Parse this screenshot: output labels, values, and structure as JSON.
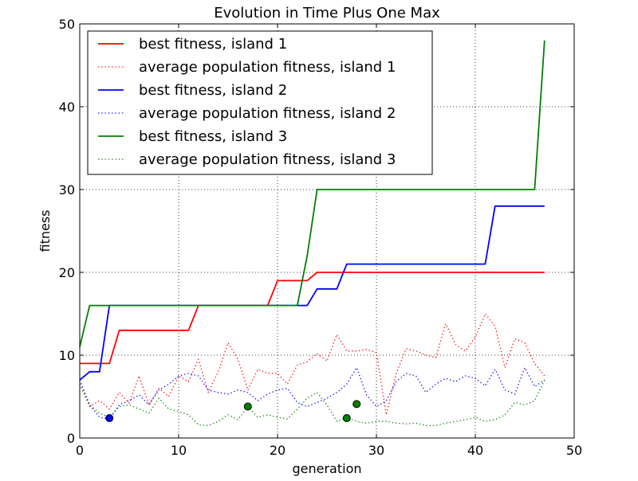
{
  "chart_data": {
    "type": "line",
    "title": "Evolution in Time Plus One Max",
    "xlabel": "generation",
    "ylabel": "fitness",
    "xlim": [
      0,
      50
    ],
    "ylim": [
      0,
      50
    ],
    "xticks": [
      "0",
      "10",
      "20",
      "30",
      "40",
      "50"
    ],
    "yticks": [
      "0",
      "10",
      "20",
      "30",
      "40",
      "50"
    ],
    "grid": true,
    "legend_position": "top-left",
    "series": [
      {
        "name": "best fitness, island 1",
        "color": "#ff0000",
        "style": "solid",
        "x": [
          0,
          1,
          2,
          3,
          4,
          5,
          6,
          7,
          8,
          9,
          10,
          11,
          12,
          13,
          14,
          15,
          16,
          17,
          18,
          19,
          20,
          21,
          22,
          23,
          24,
          25,
          26,
          27,
          28,
          29,
          30,
          31,
          32,
          33,
          34,
          35,
          36,
          37,
          38,
          39,
          40,
          41,
          42,
          43,
          44,
          45,
          46,
          47
        ],
        "y": [
          9,
          9,
          9,
          9,
          13,
          13,
          13,
          13,
          13,
          13,
          13,
          13,
          16,
          16,
          16,
          16,
          16,
          16,
          16,
          16,
          19,
          19,
          19,
          19,
          20,
          20,
          20,
          20,
          20,
          20,
          20,
          20,
          20,
          20,
          20,
          20,
          20,
          20,
          20,
          20,
          20,
          20,
          20,
          20,
          20,
          20,
          20,
          20
        ]
      },
      {
        "name": "average population fitness, island 1",
        "color": "#ff0000",
        "style": "dotted",
        "x": [
          0,
          1,
          2,
          3,
          4,
          5,
          6,
          7,
          8,
          9,
          10,
          11,
          12,
          13,
          14,
          15,
          16,
          17,
          18,
          19,
          20,
          21,
          22,
          23,
          24,
          25,
          26,
          27,
          28,
          29,
          30,
          31,
          32,
          33,
          34,
          35,
          36,
          37,
          38,
          39,
          40,
          41,
          42,
          43,
          44,
          45,
          46,
          47
        ],
        "y": [
          6.5,
          3.8,
          4.5,
          3.5,
          5.5,
          4.2,
          7.5,
          4.0,
          6.0,
          5.0,
          7.5,
          6.8,
          9.5,
          5.5,
          8.0,
          11.5,
          9.5,
          5.8,
          8.3,
          7.8,
          7.8,
          6.5,
          8.8,
          9.2,
          10.2,
          9.3,
          12.5,
          10.5,
          10.5,
          10.7,
          10.3,
          2.8,
          7.8,
          10.8,
          10.5,
          10.0,
          9.7,
          13.8,
          11.3,
          10.5,
          12.2,
          15.0,
          13.5,
          8.5,
          12.0,
          11.5,
          9.0,
          7.5
        ]
      },
      {
        "name": "best fitness, island 2",
        "color": "#0000ff",
        "style": "solid",
        "x": [
          0,
          1,
          2,
          3,
          4,
          5,
          6,
          7,
          8,
          9,
          10,
          11,
          12,
          13,
          14,
          15,
          16,
          17,
          18,
          19,
          20,
          21,
          22,
          23,
          24,
          25,
          26,
          27,
          28,
          29,
          30,
          31,
          32,
          33,
          34,
          35,
          36,
          37,
          38,
          39,
          40,
          41,
          42,
          43,
          44,
          45,
          46,
          47
        ],
        "y": [
          7,
          8,
          8,
          16,
          16,
          16,
          16,
          16,
          16,
          16,
          16,
          16,
          16,
          16,
          16,
          16,
          16,
          16,
          16,
          16,
          16,
          16,
          16,
          16,
          18,
          18,
          18,
          21,
          21,
          21,
          21,
          21,
          21,
          21,
          21,
          21,
          21,
          21,
          21,
          21,
          21,
          21,
          28,
          28,
          28,
          28,
          28,
          28
        ]
      },
      {
        "name": "average population fitness, island 2",
        "color": "#0000ff",
        "style": "dotted",
        "x": [
          0,
          1,
          2,
          3,
          4,
          5,
          6,
          7,
          8,
          9,
          10,
          11,
          12,
          13,
          14,
          15,
          16,
          17,
          18,
          19,
          20,
          21,
          22,
          23,
          24,
          25,
          26,
          27,
          28,
          29,
          30,
          31,
          32,
          33,
          34,
          35,
          36,
          37,
          38,
          39,
          40,
          41,
          42,
          43,
          44,
          45,
          46,
          47
        ],
        "y": [
          7.0,
          4.0,
          2.5,
          2.3,
          4.0,
          4.5,
          5.2,
          4.0,
          5.8,
          6.5,
          7.5,
          7.8,
          7.5,
          5.8,
          5.5,
          5.3,
          5.8,
          5.5,
          4.5,
          5.3,
          5.8,
          6.0,
          4.3,
          3.8,
          4.3,
          4.8,
          5.5,
          6.5,
          8.5,
          5.2,
          3.8,
          4.5,
          6.8,
          7.8,
          7.5,
          5.5,
          6.5,
          7.2,
          6.8,
          7.5,
          7.2,
          6.3,
          8.3,
          5.8,
          5.3,
          8.5,
          6.2,
          7.0
        ]
      },
      {
        "name": "best fitness, island 3",
        "color": "#008000",
        "style": "solid",
        "x": [
          0,
          1,
          2,
          3,
          4,
          5,
          6,
          7,
          8,
          9,
          10,
          11,
          12,
          13,
          14,
          15,
          16,
          17,
          18,
          19,
          20,
          21,
          22,
          23,
          24,
          25,
          26,
          27,
          28,
          29,
          30,
          31,
          32,
          33,
          34,
          35,
          36,
          37,
          38,
          39,
          40,
          41,
          42,
          43,
          44,
          45,
          46,
          47
        ],
        "y": [
          11,
          16,
          16,
          16,
          16,
          16,
          16,
          16,
          16,
          16,
          16,
          16,
          16,
          16,
          16,
          16,
          16,
          16,
          16,
          16,
          16,
          16,
          16,
          22,
          30,
          30,
          30,
          30,
          30,
          30,
          30,
          30,
          30,
          30,
          30,
          30,
          30,
          30,
          30,
          30,
          30,
          30,
          30,
          30,
          30,
          30,
          30,
          48
        ]
      },
      {
        "name": "average population fitness, island 3",
        "color": "#008000",
        "style": "dotted",
        "x": [
          0,
          1,
          2,
          3,
          4,
          5,
          6,
          7,
          8,
          9,
          10,
          11,
          12,
          13,
          14,
          15,
          16,
          17,
          18,
          19,
          20,
          21,
          22,
          23,
          24,
          25,
          26,
          27,
          28,
          29,
          30,
          31,
          32,
          33,
          34,
          35,
          36,
          37,
          38,
          39,
          40,
          41,
          42,
          43,
          44,
          45,
          46,
          47
        ],
        "y": [
          6.5,
          4.0,
          3.0,
          2.5,
          3.8,
          4.0,
          3.5,
          3.0,
          4.8,
          3.5,
          3.2,
          2.8,
          1.6,
          1.5,
          2.0,
          2.8,
          2.2,
          3.8,
          2.5,
          2.8,
          2.5,
          2.3,
          3.5,
          4.8,
          5.5,
          4.0,
          2.0,
          2.5,
          2.0,
          1.8,
          2.0,
          2.0,
          1.8,
          1.7,
          1.8,
          1.5,
          1.5,
          1.8,
          2.0,
          2.2,
          2.5,
          2.0,
          2.2,
          2.8,
          4.3,
          4.0,
          4.5,
          7.0
        ]
      }
    ],
    "markers": [
      {
        "x": 3,
        "y": 2.4,
        "color": "#0000ff"
      },
      {
        "x": 17,
        "y": 3.8,
        "color": "#008000"
      },
      {
        "x": 27,
        "y": 2.4,
        "color": "#008000"
      },
      {
        "x": 28,
        "y": 4.1,
        "color": "#008000"
      }
    ]
  }
}
